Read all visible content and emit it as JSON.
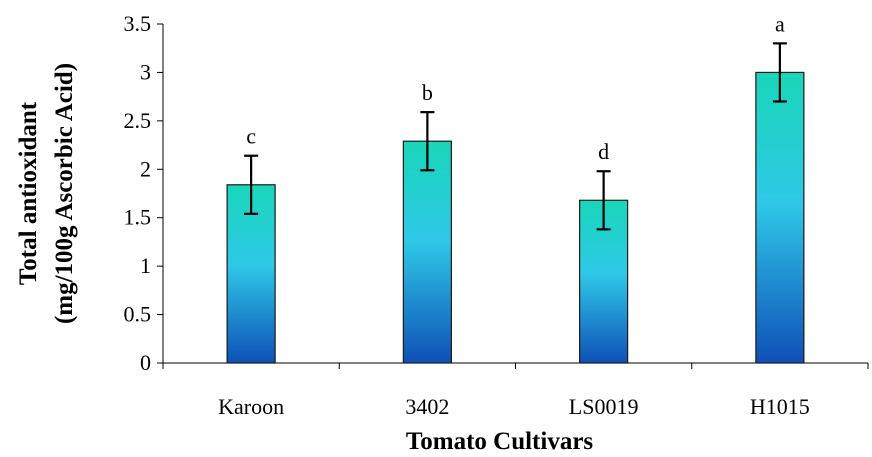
{
  "chart_data": {
    "type": "bar",
    "title": "",
    "xlabel": "Tomato Cultivars",
    "ylabel_line1": "Total antioxidant",
    "ylabel_line2": "(mg/100g Ascorbic Acid)",
    "ylim": [
      0,
      3.5
    ],
    "yticks": [
      "0",
      "0.5",
      "1",
      "1.5",
      "2",
      "2.5",
      "3",
      "3.5"
    ],
    "categories": [
      "Karoon",
      "3402",
      "LS0019",
      "H1015"
    ],
    "values": [
      1.84,
      2.29,
      1.68,
      3.0
    ],
    "error": [
      0.3,
      0.3,
      0.3,
      0.3
    ],
    "significance": [
      "c",
      "b",
      "d",
      "a"
    ],
    "grid": false,
    "legend": "none",
    "colors": {
      "bar_top": "#19d6b9",
      "bar_mid": "#2fc8e8",
      "bar_bottom": "#0f50b6",
      "outline": "#1b1b1b"
    }
  }
}
